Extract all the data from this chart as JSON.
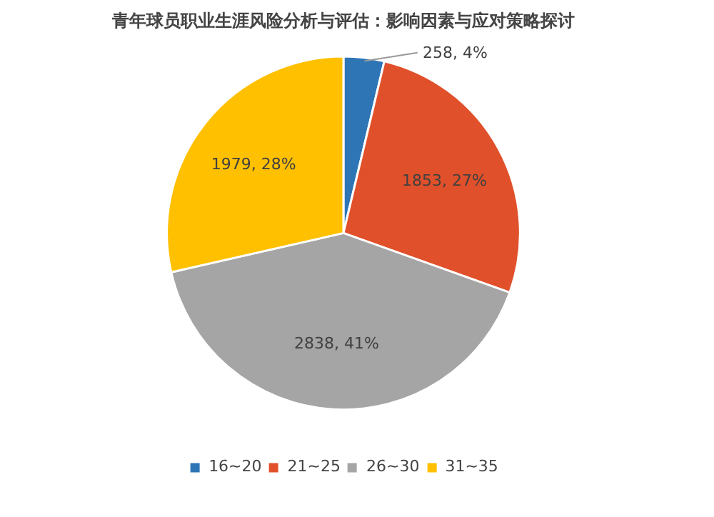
{
  "chart_data": {
    "type": "pie",
    "title": "青年球员职业生涯风险分析与评估：影响因素与应对策略探讨",
    "categories": [
      "16~20",
      "21~25",
      "26~30",
      "31~35"
    ],
    "values": [
      258,
      1853,
      2838,
      1979
    ],
    "value_labels": [
      "258, 4%",
      "1853, 27%",
      "2838, 41%",
      "1979, 28%"
    ],
    "colors": [
      "#2e75b6",
      "#e0502a",
      "#a5a5a5",
      "#ffc000"
    ],
    "legend": "bottom"
  }
}
